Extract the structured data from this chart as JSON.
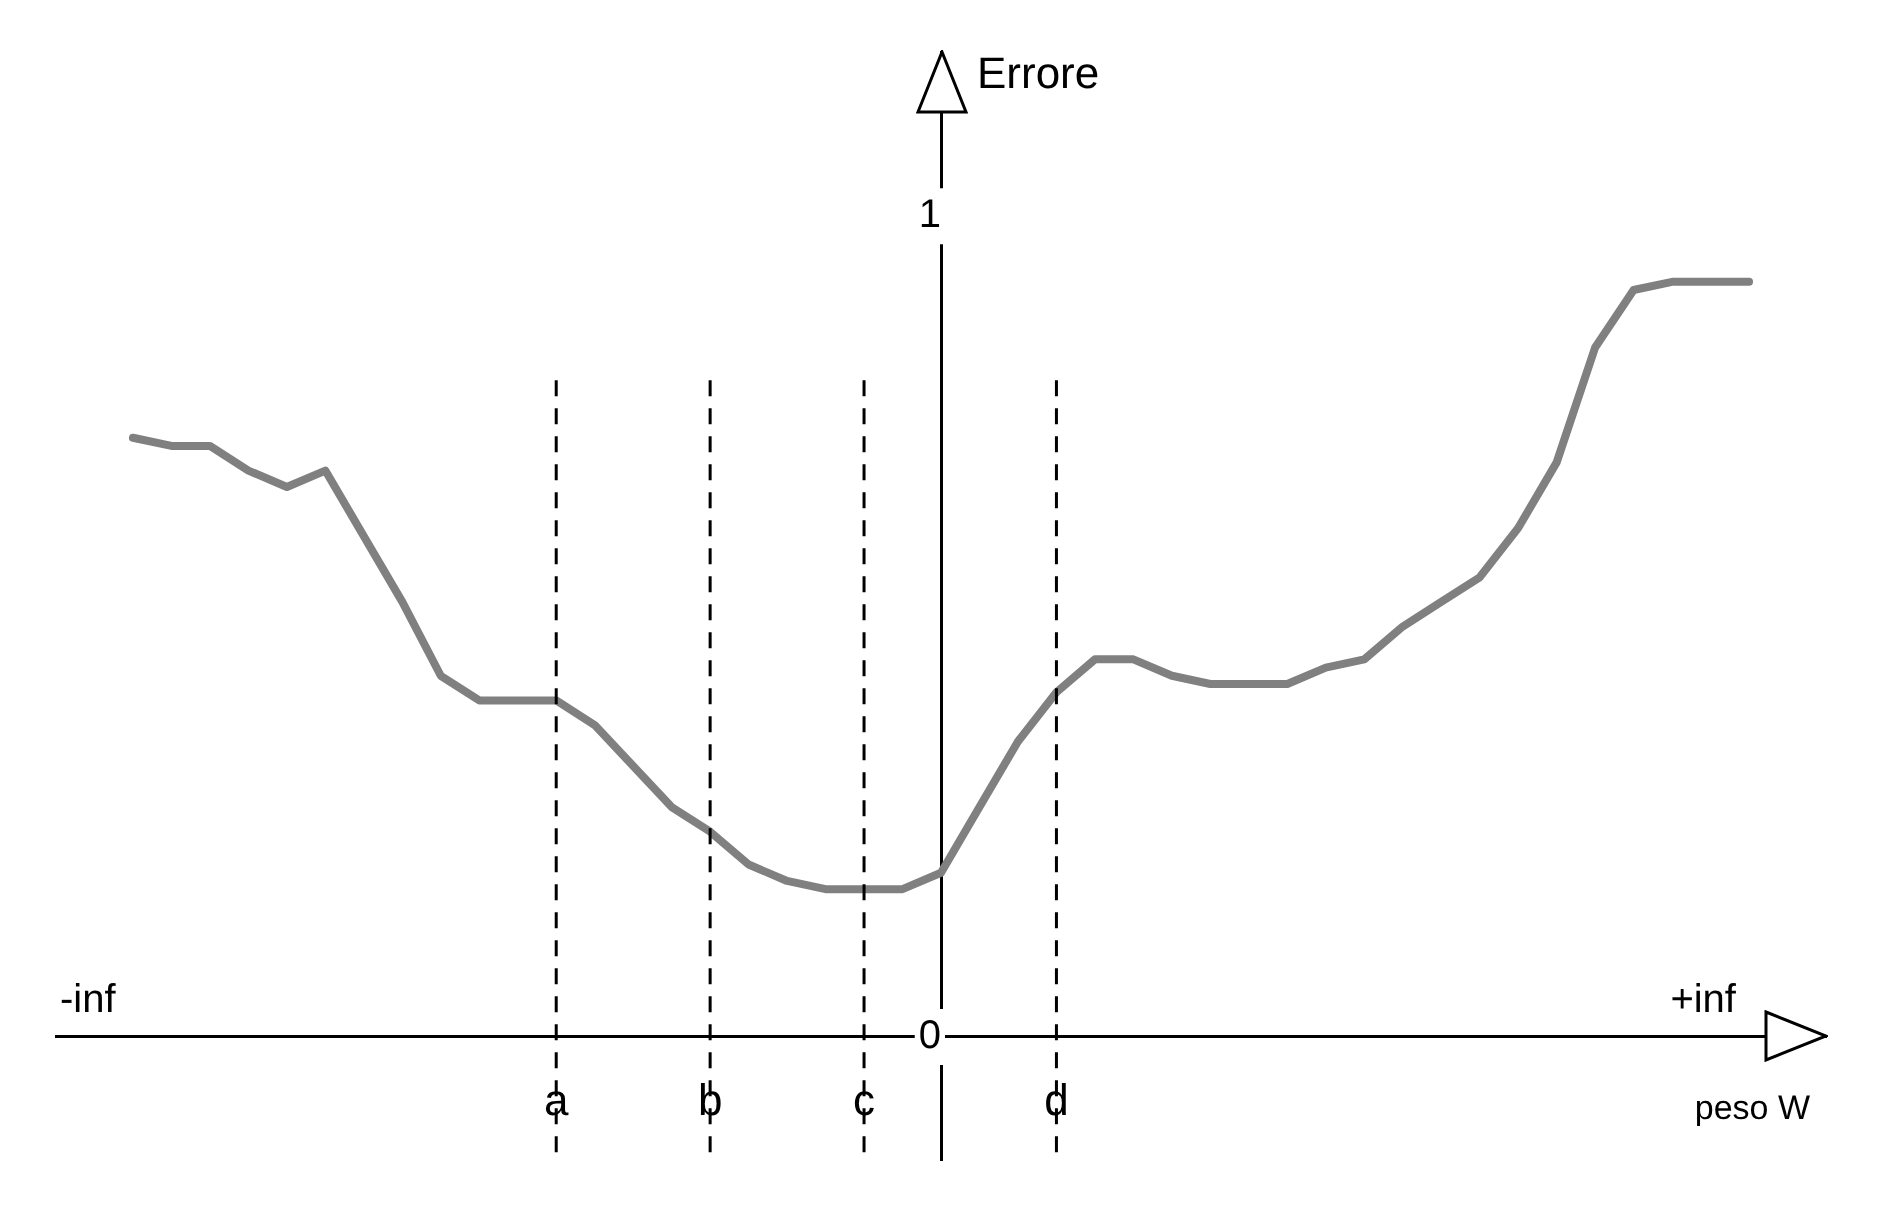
{
  "chart_data": {
    "type": "line",
    "xlabel": "peso W",
    "ylabel": "Errore",
    "categories": [
      null,
      null,
      null,
      null,
      null,
      null,
      null,
      null,
      null,
      null,
      null,
      null,
      null,
      "a",
      null,
      null,
      null,
      "b",
      null,
      null,
      null,
      "c",
      null,
      null,
      null,
      null,
      "d",
      null,
      null,
      null,
      null,
      null,
      null,
      null,
      null,
      null,
      null,
      null,
      null,
      null,
      null,
      null,
      null,
      null,
      null,
      null,
      null
    ],
    "series": [
      {
        "color": "#808080",
        "values": [
          null,
          null,
          0.73,
          0.72,
          0.72,
          0.69,
          0.67,
          0.69,
          0.61,
          0.53,
          0.44,
          0.41,
          0.41,
          0.41,
          0.38,
          0.33,
          0.28,
          0.25,
          0.21,
          0.19,
          0.18,
          0.18,
          0.18,
          0.2,
          0.28,
          0.36,
          0.42,
          0.46,
          0.46,
          0.44,
          0.43,
          0.43,
          0.43,
          0.45,
          0.46,
          0.5,
          0.53,
          0.56,
          0.62,
          0.7,
          0.84,
          0.91,
          0.92,
          0.92,
          0.92,
          null,
          null
        ]
      }
    ],
    "ylim": [
      -0.15,
      1.2
    ],
    "yticks": [
      0,
      1
    ],
    "ref_lines": [
      {
        "axis": "x",
        "value": "a",
        "line_style": "dashed",
        "color": "#000000"
      },
      {
        "axis": "x",
        "value": "b",
        "line_style": "dashed",
        "color": "#000000"
      },
      {
        "axis": "x",
        "value": "c",
        "line_style": "dashed",
        "color": "#000000"
      },
      {
        "axis": "x",
        "value": "d",
        "line_style": "dashed",
        "color": "#000000"
      }
    ],
    "annotations": [
      "-inf",
      "+inf"
    ],
    "grid": false,
    "legend": false,
    "marker": "none",
    "line_style": "solid"
  }
}
